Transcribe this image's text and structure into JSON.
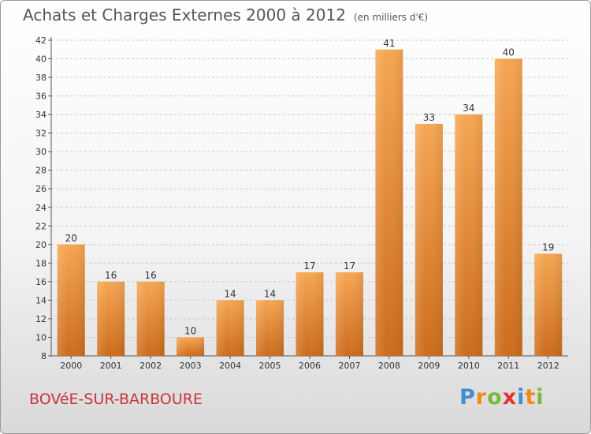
{
  "header": {
    "title": "Achats et Charges Externes 2000 à 2012",
    "unit": "(en milliers d'€)"
  },
  "footer": {
    "commune": "BOVéE-SUR-BARBOURE",
    "logo_letters": [
      "P",
      "r",
      "o",
      "x",
      "i",
      "t",
      "i"
    ],
    "logo_colors": [
      "#3f8fd0",
      "#f08a1c",
      "#7cb93a",
      "#e3322d",
      "#3f8fd0",
      "#f08a1c",
      "#7cb93a"
    ]
  },
  "colors": {
    "bar_top": "#f6a652",
    "bar_bottom": "#cc6c1c",
    "grid": "#c8c8c8",
    "axis_text": "#333333"
  },
  "chart_data": {
    "type": "bar",
    "title": "Achats et Charges Externes 2000 à 2012",
    "subtitle": "(en milliers d'€)",
    "xlabel": "",
    "ylabel": "",
    "categories": [
      "2000",
      "2001",
      "2002",
      "2003",
      "2004",
      "2005",
      "2006",
      "2007",
      "2008",
      "2009",
      "2010",
      "2011",
      "2012"
    ],
    "values": [
      20,
      16,
      16,
      10,
      14,
      14,
      17,
      17,
      41,
      33,
      34,
      40,
      19
    ],
    "ylim": [
      8,
      42
    ],
    "yticks": [
      8,
      10,
      12,
      14,
      16,
      18,
      20,
      22,
      24,
      26,
      28,
      30,
      32,
      34,
      36,
      38,
      40,
      42
    ],
    "grid": true,
    "data_labels": true
  }
}
